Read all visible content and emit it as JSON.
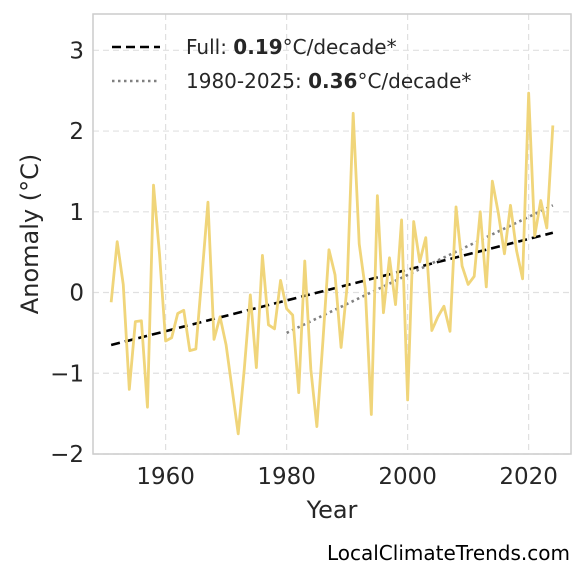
{
  "credit": "LocalClimateTrends.com",
  "chart_data": {
    "type": "line",
    "xlabel": "Year",
    "ylabel": "Anomaly (°C)",
    "xlim": [
      1948,
      2027
    ],
    "ylim": [
      -2,
      3.45
    ],
    "x_ticks": [
      1960,
      1980,
      2000,
      2020
    ],
    "x_tick_labels": [
      "1960",
      "1980",
      "2000",
      "2020"
    ],
    "y_ticks": [
      -2,
      -1,
      0,
      1,
      2,
      3
    ],
    "y_tick_labels": [
      "−2",
      "−1",
      "0",
      "1",
      "2",
      "3"
    ],
    "grid": true,
    "legend_position": "top-left",
    "colors": {
      "anomaly": "#f0d57a",
      "trend_full": "#000000",
      "trend_recent": "#808080",
      "grid": "#e0e0e0",
      "frame": "#cccccc"
    },
    "series": [
      {
        "values": [
          [
            1951,
            -0.12
          ],
          [
            1952,
            0.63
          ],
          [
            1953,
            0.1
          ],
          [
            1954,
            -1.2
          ],
          [
            1955,
            -0.36
          ],
          [
            1956,
            -0.35
          ],
          [
            1957,
            -1.42
          ],
          [
            1958,
            1.33
          ],
          [
            1959,
            0.47
          ],
          [
            1960,
            -0.6
          ],
          [
            1961,
            -0.56
          ],
          [
            1962,
            -0.26
          ],
          [
            1963,
            -0.22
          ],
          [
            1964,
            -0.72
          ],
          [
            1965,
            -0.7
          ],
          [
            1966,
            0.2
          ],
          [
            1967,
            1.12
          ],
          [
            1968,
            -0.58
          ],
          [
            1969,
            -0.3
          ],
          [
            1970,
            -0.65
          ],
          [
            1971,
            -1.2
          ],
          [
            1972,
            -1.75
          ],
          [
            1973,
            -0.95
          ],
          [
            1974,
            -0.03
          ],
          [
            1975,
            -0.93
          ],
          [
            1976,
            0.46
          ],
          [
            1977,
            -0.4
          ],
          [
            1978,
            -0.45
          ],
          [
            1979,
            0.15
          ],
          [
            1980,
            -0.2
          ],
          [
            1981,
            -0.28
          ],
          [
            1982,
            -1.24
          ],
          [
            1983,
            0.39
          ],
          [
            1984,
            -0.95
          ],
          [
            1985,
            -1.66
          ],
          [
            1986,
            -0.6
          ],
          [
            1987,
            0.53
          ],
          [
            1988,
            0.22
          ],
          [
            1989,
            -0.68
          ],
          [
            1990,
            0.08
          ],
          [
            1991,
            2.22
          ],
          [
            1992,
            0.6
          ],
          [
            1993,
            0.05
          ],
          [
            1994,
            -1.51
          ],
          [
            1995,
            1.2
          ],
          [
            1996,
            -0.25
          ],
          [
            1997,
            0.43
          ],
          [
            1998,
            -0.15
          ],
          [
            1999,
            0.9
          ],
          [
            2000,
            -1.33
          ],
          [
            2001,
            0.88
          ],
          [
            2002,
            0.38
          ],
          [
            2003,
            0.68
          ],
          [
            2004,
            -0.47
          ],
          [
            2005,
            -0.3
          ],
          [
            2006,
            -0.17
          ],
          [
            2007,
            -0.48
          ],
          [
            2008,
            1.06
          ],
          [
            2009,
            0.33
          ],
          [
            2010,
            0.1
          ],
          [
            2011,
            0.2
          ],
          [
            2012,
            1.0
          ],
          [
            2013,
            0.07
          ],
          [
            2014,
            1.38
          ],
          [
            2015,
            0.98
          ],
          [
            2016,
            0.48
          ],
          [
            2017,
            1.08
          ],
          [
            2018,
            0.52
          ],
          [
            2019,
            0.17
          ],
          [
            2020,
            2.47
          ],
          [
            2021,
            0.7
          ],
          [
            2022,
            1.14
          ],
          [
            2023,
            0.8
          ],
          [
            2024,
            2.07
          ]
        ]
      },
      {
        "name": "Full: ",
        "rate": "0.19",
        "unit": "°C/decade*",
        "style": "dashed",
        "values": [
          [
            1951,
            -0.65
          ],
          [
            2024,
            0.74
          ]
        ]
      },
      {
        "name": "1980-2025: ",
        "rate": "0.36",
        "unit": "°C/decade*",
        "style": "dotted",
        "values": [
          [
            1980,
            -0.5
          ],
          [
            2024,
            1.08
          ]
        ]
      }
    ]
  }
}
